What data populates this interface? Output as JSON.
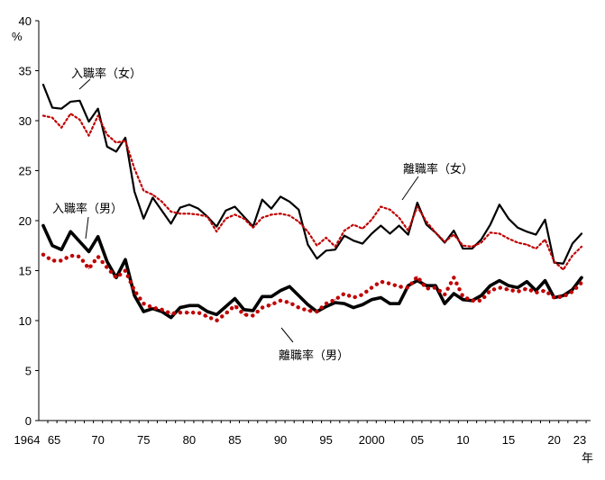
{
  "chart_data": {
    "type": "line",
    "title": "",
    "xlabel": "年",
    "ylabel": "%",
    "ylim": [
      0,
      40
    ],
    "xlim": [
      1964,
      2023
    ],
    "grid": false,
    "legend": "none",
    "y_ticks": [
      "0",
      "5",
      "10",
      "15",
      "20",
      "25",
      "30",
      "35",
      "40"
    ],
    "x_ticks": [
      {
        "x": 1964,
        "label": "1964"
      },
      {
        "x": 1965,
        "label": "65"
      },
      {
        "x": 1970,
        "label": "70"
      },
      {
        "x": 1975,
        "label": "75"
      },
      {
        "x": 1980,
        "label": "80"
      },
      {
        "x": 1985,
        "label": "85"
      },
      {
        "x": 1990,
        "label": "90"
      },
      {
        "x": 1995,
        "label": "95"
      },
      {
        "x": 2000,
        "label": "2000"
      },
      {
        "x": 2005,
        "label": "05"
      },
      {
        "x": 2010,
        "label": "10"
      },
      {
        "x": 2015,
        "label": "15"
      },
      {
        "x": 2020,
        "label": "20"
      },
      {
        "x": 2023,
        "label": "23"
      }
    ],
    "annotations": [
      {
        "text": "入職率（女）",
        "series": "entry_female"
      },
      {
        "text": "離職率（女）",
        "series": "sep_female"
      },
      {
        "text": "入職率（男）",
        "series": "entry_male"
      },
      {
        "text": "離職率（男）",
        "series": "sep_male"
      }
    ],
    "x": [
      1964,
      1965,
      1966,
      1967,
      1968,
      1969,
      1970,
      1971,
      1972,
      1973,
      1974,
      1975,
      1976,
      1977,
      1978,
      1979,
      1980,
      1981,
      1982,
      1983,
      1984,
      1985,
      1986,
      1987,
      1988,
      1989,
      1990,
      1991,
      1992,
      1993,
      1994,
      1995,
      1996,
      1997,
      1998,
      1999,
      2000,
      2001,
      2002,
      2003,
      2004,
      2005,
      2006,
      2007,
      2008,
      2009,
      2010,
      2011,
      2012,
      2013,
      2014,
      2015,
      2016,
      2017,
      2018,
      2019,
      2020,
      2021,
      2022,
      2023
    ],
    "series": [
      {
        "key": "entry_female",
        "style": "thin-solid",
        "color": "#000000",
        "values": [
          33.6,
          31.3,
          31.2,
          31.9,
          32.0,
          29.9,
          31.2,
          27.4,
          26.9,
          28.3,
          22.9,
          20.2,
          22.3,
          21.0,
          19.7,
          21.3,
          21.6,
          21.2,
          20.4,
          19.4,
          21.0,
          21.4,
          20.4,
          19.4,
          22.1,
          21.2,
          22.4,
          21.9,
          21.1,
          17.6,
          16.2,
          17.0,
          17.1,
          18.5,
          18.0,
          17.7,
          18.7,
          19.5,
          18.7,
          19.5,
          18.6,
          21.8,
          19.6,
          18.8,
          17.8,
          19.0,
          17.2,
          17.2,
          18.1,
          19.6,
          21.6,
          20.2,
          19.3,
          18.9,
          18.6,
          20.1,
          15.8,
          15.7,
          17.7,
          18.7
        ]
      },
      {
        "key": "sep_female",
        "style": "thin-dotted",
        "color": "#c00000",
        "values": [
          30.5,
          30.3,
          29.3,
          30.7,
          30.1,
          28.5,
          30.5,
          28.6,
          27.8,
          28.0,
          25.2,
          23.0,
          22.6,
          21.9,
          20.9,
          20.7,
          20.7,
          20.6,
          20.4,
          18.9,
          20.2,
          20.6,
          20.2,
          19.3,
          20.3,
          20.6,
          20.7,
          20.5,
          19.9,
          18.9,
          17.5,
          18.3,
          17.4,
          19.0,
          19.6,
          19.2,
          20.1,
          21.4,
          21.1,
          20.3,
          19.0,
          21.4,
          19.9,
          18.8,
          17.9,
          18.6,
          17.5,
          17.4,
          17.8,
          18.8,
          18.7,
          18.2,
          17.8,
          17.6,
          17.2,
          18.1,
          15.9,
          15.1,
          16.5,
          17.4
        ]
      },
      {
        "key": "entry_male",
        "style": "thick-solid",
        "color": "#000000",
        "values": [
          19.5,
          17.5,
          17.1,
          18.9,
          17.9,
          16.9,
          18.4,
          15.9,
          14.3,
          16.1,
          12.5,
          10.9,
          11.2,
          10.9,
          10.3,
          11.3,
          11.5,
          11.5,
          10.9,
          10.6,
          11.4,
          12.2,
          11.1,
          11.0,
          12.4,
          12.4,
          13.0,
          13.4,
          12.5,
          11.6,
          10.9,
          11.4,
          11.8,
          11.7,
          11.3,
          11.6,
          12.1,
          12.3,
          11.7,
          11.7,
          13.5,
          14.0,
          13.5,
          13.5,
          11.7,
          12.7,
          12.1,
          12.0,
          12.5,
          13.5,
          14.0,
          13.5,
          13.3,
          13.9,
          13.0,
          14.0,
          12.3,
          12.5,
          13.1,
          14.3
        ]
      },
      {
        "key": "sep_male",
        "style": "thick-dotted",
        "color": "#c00000",
        "values": [
          16.6,
          16.0,
          16.0,
          16.5,
          16.4,
          15.2,
          16.4,
          15.3,
          14.3,
          15.0,
          13.0,
          11.7,
          11.3,
          11.1,
          10.7,
          10.8,
          10.8,
          10.8,
          10.4,
          10.0,
          10.7,
          11.5,
          10.6,
          10.5,
          11.3,
          11.6,
          12.0,
          11.8,
          11.3,
          11.0,
          10.9,
          11.7,
          12.1,
          12.7,
          12.3,
          12.6,
          13.3,
          13.9,
          13.7,
          13.4,
          13.3,
          14.4,
          13.2,
          13.3,
          12.6,
          14.3,
          12.4,
          12.0,
          12.0,
          13.0,
          13.3,
          13.1,
          12.9,
          13.2,
          12.8,
          13.0,
          12.3,
          12.4,
          12.9,
          13.8
        ]
      }
    ]
  }
}
